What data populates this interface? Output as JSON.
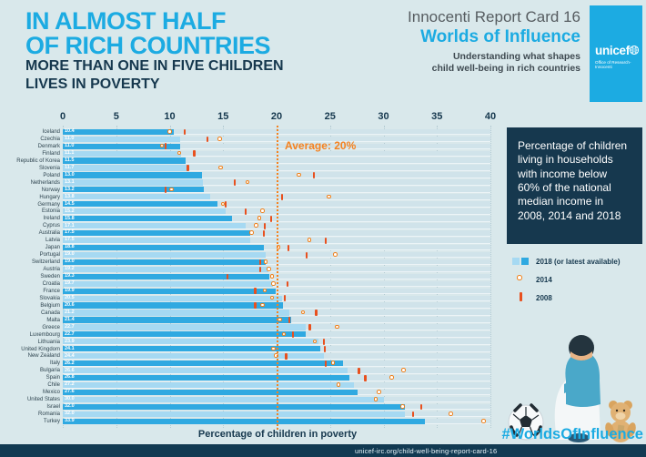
{
  "header": {
    "title_line1": "IN ALMOST HALF",
    "title_line2": "OF RICH COUNTRIES",
    "subtitle_line1": "MORE THAN ONE IN FIVE CHILDREN",
    "subtitle_line2": "LIVES IN POVERTY",
    "report_name": "Innocenti Report Card 16",
    "report_title": "Worlds of Influence",
    "report_tagline_line1": "Understanding what shapes",
    "report_tagline_line2": "child well-being in rich countries",
    "logo_text": "unicef",
    "logo_subtext": "Office of Research-Innocenti"
  },
  "chart_data": {
    "type": "bar",
    "orientation": "horizontal",
    "xlabel": "Percentage of children in poverty",
    "xlim": [
      0,
      40
    ],
    "xticks": [
      0,
      5,
      10,
      15,
      20,
      25,
      30,
      35,
      40
    ],
    "grid": "vertical-dotted",
    "average_value": 20,
    "average_label": "Average: 20%",
    "series_legend": [
      "2018 (or latest available)",
      "2014",
      "2008"
    ],
    "countries": [
      {
        "name": "Iceland",
        "v2018": 10.4,
        "v2014": 10.1,
        "v2008": 11.4
      },
      {
        "name": "Czechia",
        "v2018": 11.0,
        "v2014": 14.8,
        "v2008": 13.5
      },
      {
        "name": "Denmark",
        "v2018": 11.0,
        "v2014": 9.4,
        "v2008": 9.6
      },
      {
        "name": "Finland",
        "v2018": 11.1,
        "v2014": 11.0,
        "v2008": 12.3
      },
      {
        "name": "Republic of Korea",
        "v2018": 11.5,
        "v2014": null,
        "v2008": null
      },
      {
        "name": "Slovenia",
        "v2018": 11.7,
        "v2014": 14.9,
        "v2008": 11.7
      },
      {
        "name": "Poland",
        "v2018": 13.0,
        "v2014": 22.2,
        "v2008": 23.5
      },
      {
        "name": "Netherlands",
        "v2018": 13.1,
        "v2014": 17.4,
        "v2008": 16.1
      },
      {
        "name": "Norway",
        "v2018": 13.2,
        "v2014": 10.3,
        "v2008": 9.6
      },
      {
        "name": "Hungary",
        "v2018": 13.8,
        "v2014": 25.0,
        "v2008": 20.5
      },
      {
        "name": "Germany",
        "v2018": 14.5,
        "v2014": 15.1,
        "v2008": 15.2
      },
      {
        "name": "Estonia",
        "v2018": 15.2,
        "v2014": 18.8,
        "v2008": 17.1
      },
      {
        "name": "Ireland",
        "v2018": 15.8,
        "v2014": 18.5,
        "v2008": 19.5
      },
      {
        "name": "Cyprus",
        "v2018": 17.1,
        "v2014": 18.2,
        "v2008": 18.9
      },
      {
        "name": "Australia",
        "v2018": 17.5,
        "v2014": 17.8,
        "v2008": 18.8
      },
      {
        "name": "Latvia",
        "v2018": 17.5,
        "v2014": 23.2,
        "v2008": 24.6
      },
      {
        "name": "Japan",
        "v2018": 18.8,
        "v2014": 20.3,
        "v2008": 21.1
      },
      {
        "name": "Portugal",
        "v2018": 19.0,
        "v2014": 25.6,
        "v2008": 22.8
      },
      {
        "name": "Switzerland",
        "v2018": 19.0,
        "v2014": 19.1,
        "v2008": 18.5
      },
      {
        "name": "Austria",
        "v2018": 19.2,
        "v2014": 19.4,
        "v2008": 18.5
      },
      {
        "name": "Sweden",
        "v2018": 19.3,
        "v2014": 19.7,
        "v2008": 15.4
      },
      {
        "name": "Croatia",
        "v2018": 19.7,
        "v2014": 19.8,
        "v2008": 21.0
      },
      {
        "name": "France",
        "v2018": 19.9,
        "v2014": 19.0,
        "v2008": 18.0
      },
      {
        "name": "Slovakia",
        "v2018": 20.5,
        "v2014": 19.7,
        "v2008": 20.8
      },
      {
        "name": "Belgium",
        "v2018": 20.6,
        "v2014": 18.8,
        "v2008": 18.0
      },
      {
        "name": "Canada",
        "v2018": 21.2,
        "v2014": 22.6,
        "v2008": 23.7
      },
      {
        "name": "Malta",
        "v2018": 21.4,
        "v2014": 20.4,
        "v2008": 21.2
      },
      {
        "name": "Greece",
        "v2018": 22.7,
        "v2014": 25.8,
        "v2008": 23.1
      },
      {
        "name": "Luxembourg",
        "v2018": 22.7,
        "v2014": 20.8,
        "v2008": 21.5
      },
      {
        "name": "Lithuania",
        "v2018": 23.9,
        "v2014": 23.7,
        "v2008": 24.4
      },
      {
        "name": "United Kingdom",
        "v2018": 24.1,
        "v2014": 19.8,
        "v2008": 24.5
      },
      {
        "name": "New Zealand",
        "v2018": 24.4,
        "v2014": 20.1,
        "v2008": 20.9
      },
      {
        "name": "Italy",
        "v2018": 26.2,
        "v2014": 25.4,
        "v2008": 24.6
      },
      {
        "name": "Bulgaria",
        "v2018": 26.6,
        "v2014": 32.0,
        "v2008": 27.7
      },
      {
        "name": "Spain",
        "v2018": 26.8,
        "v2014": 30.9,
        "v2008": 28.3
      },
      {
        "name": "Chile",
        "v2018": 27.2,
        "v2014": 25.9,
        "v2008": null
      },
      {
        "name": "Mexico",
        "v2018": 27.6,
        "v2014": 29.7,
        "v2008": null
      },
      {
        "name": "United States",
        "v2018": 30.0,
        "v2014": 29.4,
        "v2008": null
      },
      {
        "name": "Israel",
        "v2018": 32.0,
        "v2014": 31.9,
        "v2008": 33.5
      },
      {
        "name": "Romania",
        "v2018": 32.0,
        "v2014": 36.4,
        "v2008": 32.8
      },
      {
        "name": "Turkey",
        "v2018": 33.9,
        "v2014": 39.5,
        "v2008": null
      }
    ]
  },
  "panel": {
    "description": "Percentage of children living in households with income below 60% of the national median income in 2008, 2014 and 2018",
    "legend": [
      {
        "marker": "bars-2018",
        "label": "2018 (or latest available)"
      },
      {
        "marker": "circle-2014",
        "label": "2014"
      },
      {
        "marker": "tick-2008",
        "label": "2008"
      }
    ],
    "hashtag": "#WorldsOfInfluence"
  },
  "footer": {
    "url": "unicef-irc.org/child-well-being-report-card-16"
  },
  "colors": {
    "background": "#d9e8eb",
    "cyan": "#1cabe2",
    "navy": "#16384e",
    "bar_2018_medium": "#2fa9e1",
    "bar_2018_light": "#a6d9f2",
    "marker_2014": "#f08019",
    "marker_2008": "#e8501e",
    "average": "#f5821f",
    "footer_bar": "#123a52"
  }
}
